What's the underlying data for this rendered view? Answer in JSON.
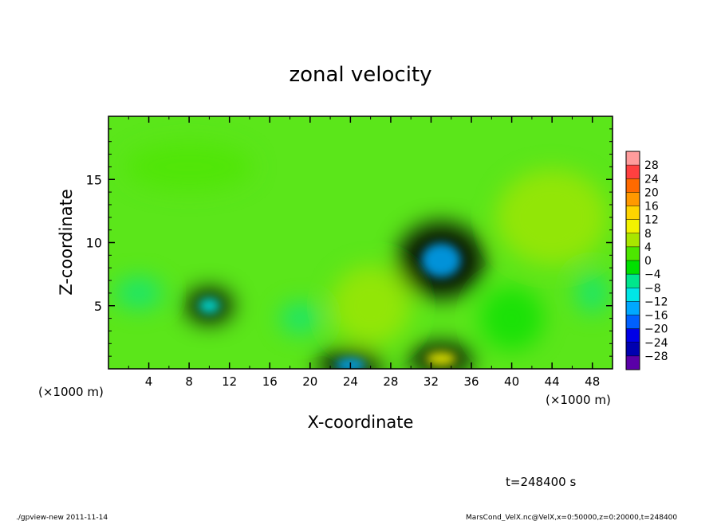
{
  "chart_data": {
    "type": "heatmap",
    "title": "zonal velocity",
    "xlabel": "X-coordinate",
    "ylabel": "Z-coordinate",
    "x_unit_label": "(×1000 m)",
    "xlim": [
      0,
      50
    ],
    "ylim": [
      0,
      20
    ],
    "x_ticks": [
      4,
      8,
      12,
      16,
      20,
      24,
      28,
      32,
      36,
      40,
      44,
      48
    ],
    "y_ticks": [
      5,
      10,
      15
    ],
    "colorbar": {
      "labels": [
        "28",
        "24",
        "20",
        "16",
        "12",
        "8",
        "4",
        "0",
        "−4",
        "−8",
        "−12",
        "−16",
        "−20",
        "−24",
        "−28"
      ],
      "colors": [
        "#ff9c9c",
        "#ff4040",
        "#ff6a00",
        "#ff9900",
        "#ffd400",
        "#f2f200",
        "#a9e600",
        "#4de600",
        "#00e000",
        "#00e68c",
        "#00e6e6",
        "#00a8ff",
        "#0060ff",
        "#0000e6",
        "#0000b0",
        "#5a00a8"
      ]
    },
    "background_color": "#5be61a",
    "features": [
      {
        "type": "min",
        "x": 33,
        "z": 8.6,
        "value": -12
      },
      {
        "type": "min",
        "x": 10,
        "z": 5.0,
        "value": -10
      },
      {
        "type": "max",
        "x": 33,
        "z": 0.8,
        "value": 12
      },
      {
        "type": "min",
        "x": 24,
        "z": 0.3,
        "value": -12
      }
    ],
    "time_label": "t=248400 s"
  },
  "footer": {
    "program": "./gpview-new  2011-11-14",
    "source": "MarsCond_VelX.nc@VelX,x=0:50000,z=0:20000,t=248400"
  }
}
